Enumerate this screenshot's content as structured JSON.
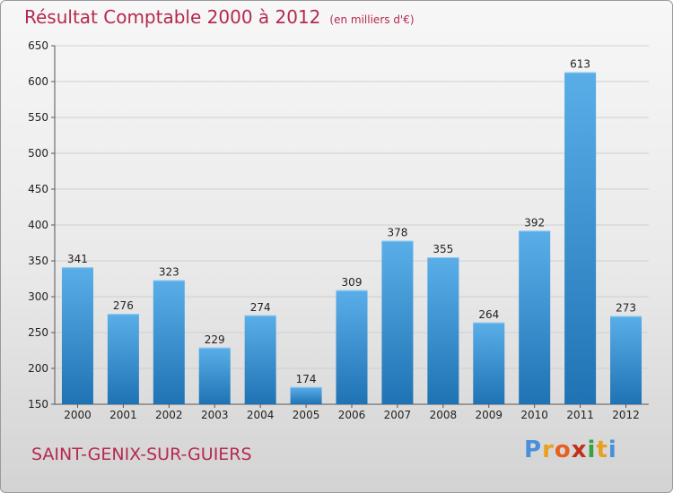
{
  "chart_data": {
    "type": "bar",
    "title": "Résultat Comptable 2000 à 2012",
    "subtitle": "(en milliers d'€)",
    "categories": [
      "2000",
      "2001",
      "2002",
      "2003",
      "2004",
      "2005",
      "2006",
      "2007",
      "2008",
      "2009",
      "2010",
      "2011",
      "2012"
    ],
    "values": [
      341,
      276,
      323,
      229,
      274,
      174,
      309,
      378,
      355,
      264,
      392,
      613,
      273
    ],
    "ylim": [
      150,
      650
    ],
    "yticks": [
      150,
      200,
      250,
      300,
      350,
      400,
      450,
      500,
      550,
      600,
      650
    ],
    "grid": true,
    "bar_color": "#3d96d8",
    "bar_color_light": "#5aaee8",
    "bar_color_dark": "#1f73b4",
    "grid_color": "#cfcfcf",
    "title_color": "#b5294f"
  },
  "commune": "SAINT-GENIX-SUR-GUIERS",
  "logo": {
    "letters": [
      "P",
      "r",
      "o",
      "x",
      "i",
      "t",
      "i"
    ],
    "colors": [
      "#4a90d9",
      "#e8a020",
      "#e86020",
      "#c0301a",
      "#3aa040",
      "#e8a020",
      "#4a90d9"
    ]
  }
}
